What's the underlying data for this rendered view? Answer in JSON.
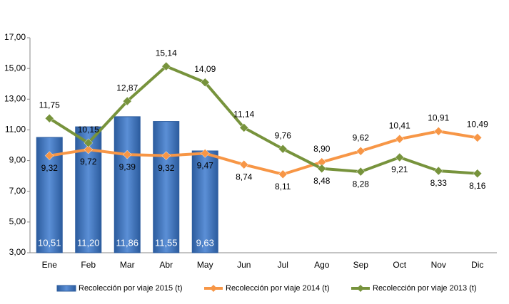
{
  "chart_data": {
    "type": "bar_line",
    "categories": [
      "Ene",
      "Feb",
      "Mar",
      "Abr",
      "May",
      "Jun",
      "Jul",
      "Ago",
      "Sep",
      "Oct",
      "Nov",
      "Dic"
    ],
    "series": [
      {
        "name": "Recolección por viaje 2015 (t)",
        "type": "bar",
        "color": "#4f81bd",
        "values": [
          10.51,
          11.2,
          11.86,
          11.55,
          9.63,
          null,
          null,
          null,
          null,
          null,
          null,
          null
        ],
        "value_labels": [
          "10,51",
          "11,20",
          "11,86",
          "11,55",
          "9,63",
          null,
          null,
          null,
          null,
          null,
          null,
          null
        ]
      },
      {
        "name": "Recolección por viaje 2014 (t)",
        "type": "line",
        "color": "#f79646",
        "values": [
          9.32,
          9.72,
          9.39,
          9.32,
          9.47,
          8.74,
          8.11,
          8.9,
          9.62,
          10.41,
          10.91,
          10.49
        ],
        "value_labels": [
          "9,32",
          "9,72",
          "9,39",
          "9,32",
          "9,47",
          "8,74",
          "8,11",
          "8,90",
          "9,62",
          "10,41",
          "10,91",
          "10,49"
        ]
      },
      {
        "name": "Recolección por viaje 2013 (t)",
        "type": "line",
        "color": "#77933c",
        "values": [
          11.75,
          10.15,
          12.87,
          15.14,
          14.09,
          11.14,
          9.76,
          8.48,
          8.28,
          9.21,
          8.33,
          8.16
        ],
        "value_labels": [
          "11,75",
          "10,15",
          "12,87",
          "15,14",
          "14,09",
          "11,14",
          "9,76",
          "8,48",
          "8,28",
          "9,21",
          "8,33",
          "8,16"
        ]
      }
    ],
    "ylim": [
      3,
      17
    ],
    "yticks": [
      {
        "value": 3,
        "label": "3,00"
      },
      {
        "value": 5,
        "label": "5,00"
      },
      {
        "value": 7,
        "label": "7,00"
      },
      {
        "value": 9,
        "label": "9,00"
      },
      {
        "value": 11,
        "label": "11,00"
      },
      {
        "value": 13,
        "label": "13,00"
      },
      {
        "value": 15,
        "label": "15,00"
      },
      {
        "value": 17,
        "label": "17,00"
      }
    ],
    "grid": false,
    "legend": "bottom"
  }
}
